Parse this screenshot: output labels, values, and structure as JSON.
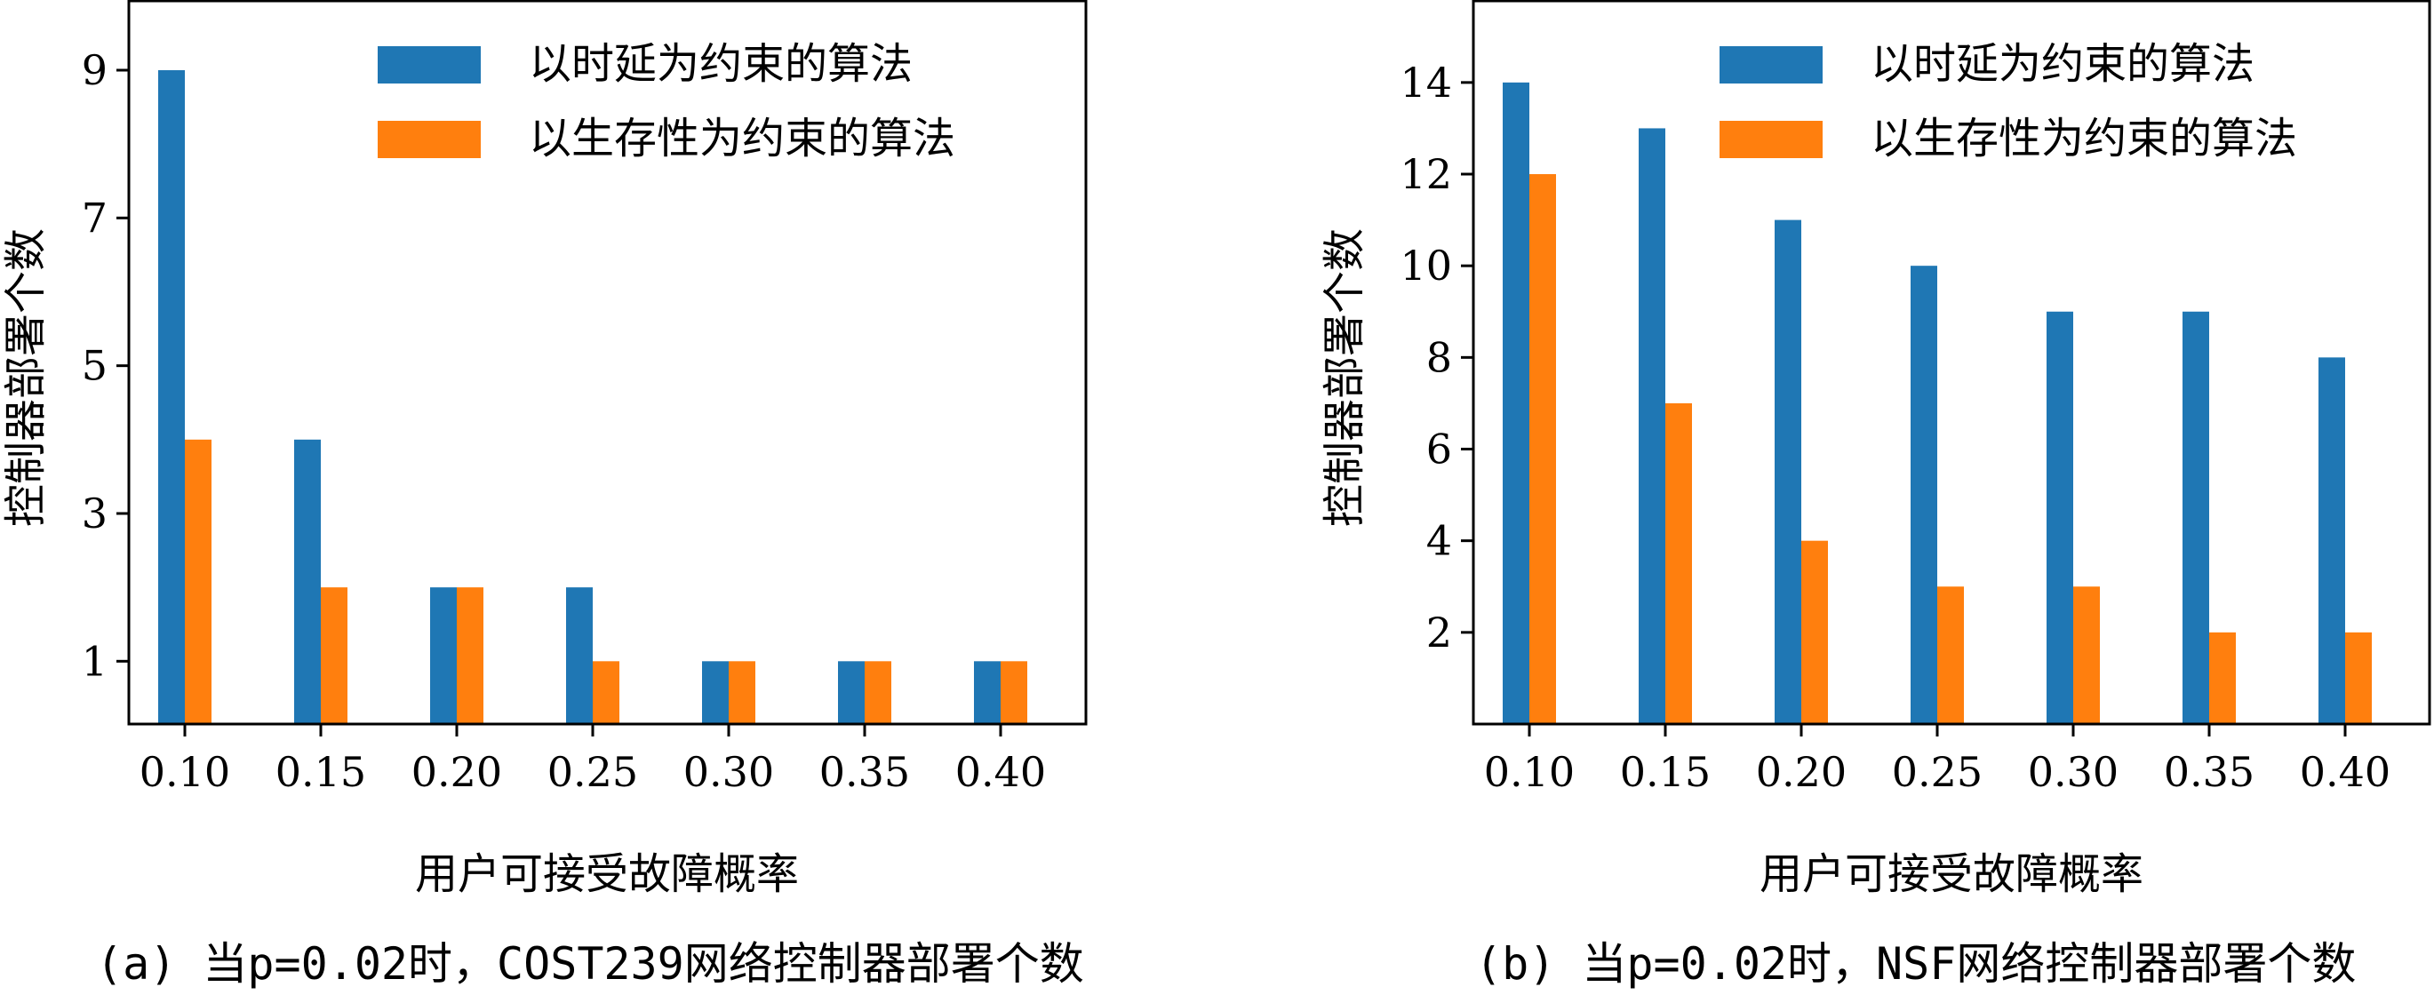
{
  "colors": {
    "series_1": "#1f77b4",
    "series_2": "#ff7f0e",
    "axis": "#000000",
    "background": "#ffffff"
  },
  "chart_data": [
    {
      "type": "bar",
      "caption": "(a) 当p=0.02时，COST239网络控制器部署个数",
      "categories": [
        "0.10",
        "0.15",
        "0.20",
        "0.25",
        "0.30",
        "0.35",
        "0.40"
      ],
      "series": [
        {
          "name": "以时延为约束的算法",
          "values": [
            9,
            4,
            2,
            2,
            1,
            1,
            1
          ]
        },
        {
          "name": "以生存性为约束的算法",
          "values": [
            4,
            2,
            2,
            1,
            1,
            1,
            1
          ]
        }
      ],
      "yticks": [
        "1",
        "3",
        "5",
        "7",
        "9"
      ],
      "xlabel": "用户可接受故障概率",
      "ylabel": "控制器部署个数",
      "ylim": [
        0.15,
        9.95
      ],
      "legend_position": "top-right",
      "grid": false
    },
    {
      "type": "bar",
      "caption": "(b) 当p=0.02时，NSF网络控制器部署个数",
      "categories": [
        "0.10",
        "0.15",
        "0.20",
        "0.25",
        "0.30",
        "0.35",
        "0.40"
      ],
      "series": [
        {
          "name": "以时延为约束的算法",
          "values": [
            14,
            13,
            11,
            10,
            9,
            9,
            8
          ]
        },
        {
          "name": "以生存性为约束的算法",
          "values": [
            12,
            7,
            4,
            3,
            3,
            2,
            2
          ]
        }
      ],
      "yticks": [
        "2",
        "4",
        "6",
        "8",
        "10",
        "12",
        "14"
      ],
      "xlabel": "用户可接受故障概率",
      "ylabel": "控制器部署个数",
      "ylim": [
        0.0,
        15.8
      ],
      "legend_position": "top-right",
      "grid": false
    }
  ]
}
